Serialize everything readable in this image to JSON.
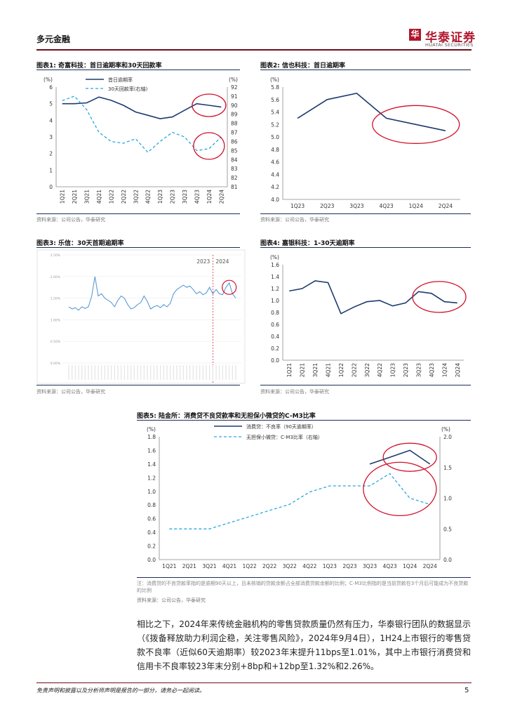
{
  "header": {
    "section": "多元金融",
    "logo_char": "华",
    "logo_cn": "华泰证券",
    "logo_en": "HUATAI SECURITIES"
  },
  "figures": {
    "fig1": {
      "label": "图表1:",
      "title": "奇富科技：首日逾期率和30天回款率",
      "source": "资料来源：公司公告，华泰研究"
    },
    "fig2": {
      "label": "图表2:",
      "title": "信也科技：首日逾期率",
      "source": "资料来源：公司公告，华泰研究"
    },
    "fig3": {
      "label": "图表3:",
      "title": "乐信：30天首期逾期率",
      "source": "资料来源：公司公告，华泰研究"
    },
    "fig4": {
      "label": "图表4:",
      "title": "嘉银科技：1-30天逾期率",
      "source": "资料来源：公司公告，华泰研究"
    },
    "fig5": {
      "label": "图表5:",
      "title": "陆金所：消费贷不良贷款率和无担保小微贷的C-M3比率",
      "note": "注：消费贷的不良贷款率指的是逾期90天以上，且未核销的贷款余额占全部消费贷款余额的比例；C-M3比例指的是当前贷款在3个月后可能成为不良贷款的比例",
      "source": "资料来源：公司公告，华泰研究"
    }
  },
  "chart_data": [
    {
      "id": "fig1",
      "type": "line",
      "categories": [
        "1Q21",
        "2Q21",
        "3Q21",
        "4Q21",
        "1Q22",
        "2Q22",
        "3Q22",
        "4Q22",
        "1Q23",
        "2Q23",
        "3Q23",
        "4Q23",
        "1Q24",
        "2Q24"
      ],
      "series": [
        {
          "name": "首日逾期率",
          "axis": "left",
          "style": "solid",
          "values": [
            5.0,
            5.0,
            5.05,
            5.4,
            5.2,
            4.9,
            4.5,
            4.3,
            4.1,
            4.2,
            4.6,
            5.0,
            4.9,
            4.8
          ]
        },
        {
          "name": "30天回款率(右轴)",
          "axis": "right",
          "style": "dashed",
          "values": [
            90.5,
            91.0,
            89.5,
            87.0,
            86.0,
            85.8,
            86.3,
            84.8,
            86.0,
            87.0,
            86.5,
            85.0,
            85.2,
            86.5
          ]
        }
      ],
      "ylim_left": [
        0,
        6
      ],
      "yticks_left": [
        0,
        1,
        2,
        3,
        4,
        5,
        6
      ],
      "ylabel_left": "(%)",
      "ylim_right": [
        81,
        92
      ],
      "yticks_right": [
        81,
        82,
        83,
        84,
        85,
        86,
        87,
        88,
        89,
        90,
        91,
        92
      ],
      "ylabel_right": "(%)",
      "annotations": [
        "circle",
        "circle"
      ]
    },
    {
      "id": "fig2",
      "type": "line",
      "categories": [
        "1Q23",
        "2Q23",
        "3Q23",
        "4Q23",
        "1Q24",
        "2Q24"
      ],
      "series": [
        {
          "name": "首日逾期率",
          "style": "solid",
          "values": [
            5.3,
            5.6,
            5.7,
            5.3,
            5.2,
            5.1
          ]
        }
      ],
      "ylim": [
        4.0,
        5.8
      ],
      "yticks": [
        "4.0",
        "4.2",
        "4.4",
        "4.6",
        "4.8",
        "5.0",
        "5.2",
        "5.4",
        "5.6",
        "5.8"
      ],
      "ylabel": "(%)"
    },
    {
      "id": "fig3",
      "type": "line",
      "ylim": [
        0,
        2.5
      ],
      "yticks": [
        "0.00%",
        "0.50%",
        "1.00%",
        "1.50%",
        "2.00%",
        "2.50%"
      ],
      "period_labels": [
        "2023",
        "2024"
      ],
      "series": [
        {
          "name": "30天首期逾期率",
          "style": "solid",
          "values": [
            1.3,
            1.25,
            1.28,
            1.22,
            1.3,
            1.26,
            1.3,
            1.55,
            2.0,
            1.55,
            1.6,
            1.5,
            1.45,
            1.4,
            1.3,
            1.45,
            1.55,
            1.5,
            1.35,
            1.25,
            1.28,
            1.35,
            1.4,
            1.55,
            1.42,
            1.25,
            1.3,
            1.33,
            1.28,
            1.35,
            1.3,
            1.38,
            1.6,
            1.7,
            1.75,
            1.8,
            1.75,
            1.78,
            1.7,
            1.6,
            1.65,
            1.58,
            1.62,
            1.75,
            1.6,
            1.7,
            1.6,
            1.58,
            1.75,
            1.85,
            1.6,
            1.5
          ]
        }
      ]
    },
    {
      "id": "fig4",
      "type": "line",
      "categories": [
        "1Q21",
        "2Q21",
        "3Q21",
        "4Q21",
        "1Q22",
        "2Q22",
        "3Q22",
        "4Q22",
        "1Q23",
        "2Q23",
        "3Q23",
        "4Q23",
        "1Q24",
        "2Q24"
      ],
      "series": [
        {
          "name": "1-30天逾期率",
          "style": "solid",
          "values": [
            1.16,
            1.2,
            1.33,
            1.3,
            0.78,
            0.89,
            0.98,
            1.0,
            0.91,
            0.96,
            1.15,
            1.12,
            0.98,
            0.96
          ]
        }
      ],
      "ylim": [
        0,
        1.6
      ],
      "yticks": [
        "0.0",
        "0.2",
        "0.4",
        "0.6",
        "0.8",
        "1.0",
        "1.2",
        "1.4",
        "1.6"
      ],
      "ylabel": "(%)"
    },
    {
      "id": "fig5",
      "type": "line",
      "categories": [
        "1Q21",
        "2Q21",
        "3Q21",
        "4Q21",
        "1Q22",
        "2Q22",
        "3Q22",
        "4Q22",
        "1Q23",
        "2Q23",
        "3Q23",
        "4Q23",
        "1Q24",
        "2Q24"
      ],
      "series": [
        {
          "name": "消费贷：不良率（90天逾期率）",
          "axis": "left",
          "style": "solid",
          "values": [
            null,
            null,
            null,
            null,
            null,
            null,
            null,
            null,
            null,
            null,
            1.4,
            1.5,
            1.6,
            1.4
          ]
        },
        {
          "name": "无担保小微贷：C-M3比率（右轴）",
          "axis": "right",
          "style": "dashed",
          "values": [
            0.5,
            0.5,
            0.5,
            0.6,
            0.7,
            0.8,
            0.9,
            1.1,
            1.2,
            1.2,
            1.2,
            1.4,
            1.0,
            0.9
          ]
        }
      ],
      "ylim_left": [
        0,
        1.8
      ],
      "yticks_left": [
        "0.0",
        "0.2",
        "0.4",
        "0.6",
        "0.8",
        "1.0",
        "1.2",
        "1.4",
        "1.6",
        "1.8"
      ],
      "ylabel_left": "(%)",
      "ylim_right": [
        0,
        2.0
      ],
      "yticks_right": [
        "0.0",
        "0.5",
        "1.0",
        "1.5",
        "2.0"
      ],
      "ylabel_right": "(%)",
      "annotations": [
        "circle",
        "circle"
      ]
    }
  ],
  "body": {
    "paragraph": "相比之下，2024年来传统金融机构的零售贷款质量仍然有压力，华泰银行团队的数据显示（《拨备释放助力利润企稳，关注零售风险》，2024年9月4日），1H24上市银行的零售贷款不良率（近似60天逾期率）较2023年末提升11bps至1.01%，其中上市银行消费贷和信用卡不良率较23年末分别+8bp和+12bp至1.32%和2.26%。"
  },
  "footer": {
    "disclaimer": "免责声明和披露以及分析师声明是报告的一部分，请务必一起阅读。",
    "page": "5"
  },
  "colors": {
    "brand": "#b0162b",
    "line_navy": "#1d3b6e",
    "line_dashed": "#29a8e0",
    "circle": "#d0102a"
  }
}
